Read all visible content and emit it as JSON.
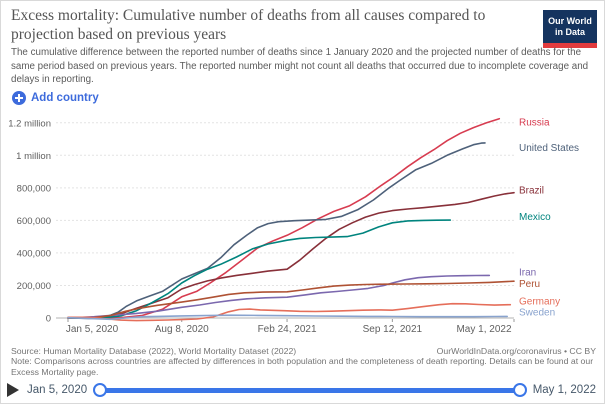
{
  "header": {
    "title": "Excess mortality: Cumulative number of deaths from all causes compared to projection based on previous years",
    "subtitle": "The cumulative difference between the reported number of deaths since 1 January 2020 and the projected number of deaths for the same period based on previous years. The reported number might not count all deaths that occurred due to incomplete coverage and delays in reporting.",
    "logo": {
      "line1": "Our World",
      "line2": "in Data"
    }
  },
  "controls": {
    "add_country_label": "Add country"
  },
  "chart_data": {
    "type": "line",
    "title": "Excess mortality: Cumulative number of deaths from all causes compared to projection based on previous years",
    "value_unit": "thousands of deaths",
    "grid": true,
    "legend_position": "right-edge-labels",
    "x_axis": {
      "total_days": 847,
      "ticks": [
        {
          "day": 0,
          "label": "Jan 5, 2020"
        },
        {
          "day": 216,
          "label": "Aug 8, 2020"
        },
        {
          "day": 416,
          "label": "Feb 24, 2021"
        },
        {
          "day": 616,
          "label": "Sep 12, 2021"
        },
        {
          "day": 847,
          "label": "May 1, 2022"
        }
      ]
    },
    "y_axis": {
      "ylim_thousands": [
        0,
        1200
      ],
      "ticks": [
        {
          "value": 0,
          "label": "0"
        },
        {
          "value": 200,
          "label": "200,000"
        },
        {
          "value": 400,
          "label": "400,000"
        },
        {
          "value": 600,
          "label": "600,000"
        },
        {
          "value": 800,
          "label": "800,000"
        },
        {
          "value": 1000,
          "label": "1 million"
        },
        {
          "value": 1200,
          "label": "1.2 million"
        }
      ]
    },
    "series": [
      {
        "name": "Russia",
        "color": "#D73C50",
        "points_thousands": [
          [
            0,
            0
          ],
          [
            60,
            -2
          ],
          [
            100,
            2
          ],
          [
            140,
            15
          ],
          [
            180,
            55
          ],
          [
            216,
            130
          ],
          [
            245,
            165
          ],
          [
            270,
            215
          ],
          [
            300,
            280
          ],
          [
            330,
            355
          ],
          [
            360,
            430
          ],
          [
            390,
            475
          ],
          [
            416,
            508
          ],
          [
            445,
            555
          ],
          [
            475,
            610
          ],
          [
            505,
            655
          ],
          [
            535,
            690
          ],
          [
            565,
            745
          ],
          [
            595,
            815
          ],
          [
            620,
            870
          ],
          [
            645,
            930
          ],
          [
            670,
            985
          ],
          [
            695,
            1035
          ],
          [
            720,
            1090
          ],
          [
            745,
            1135
          ],
          [
            770,
            1170
          ],
          [
            795,
            1200
          ],
          [
            819,
            1225
          ]
        ]
      },
      {
        "name": "United States",
        "color": "#4E617A",
        "points_thousands": [
          [
            0,
            0
          ],
          [
            40,
            -3
          ],
          [
            70,
            3
          ],
          [
            95,
            35
          ],
          [
            110,
            70
          ],
          [
            130,
            105
          ],
          [
            155,
            135
          ],
          [
            180,
            165
          ],
          [
            216,
            240
          ],
          [
            240,
            272
          ],
          [
            265,
            305
          ],
          [
            290,
            370
          ],
          [
            315,
            450
          ],
          [
            340,
            510
          ],
          [
            360,
            555
          ],
          [
            380,
            580
          ],
          [
            400,
            592
          ],
          [
            430,
            598
          ],
          [
            460,
            602
          ],
          [
            490,
            606
          ],
          [
            520,
            625
          ],
          [
            550,
            665
          ],
          [
            580,
            725
          ],
          [
            610,
            800
          ],
          [
            630,
            845
          ],
          [
            660,
            910
          ],
          [
            690,
            950
          ],
          [
            720,
            1000
          ],
          [
            750,
            1040
          ],
          [
            770,
            1065
          ],
          [
            785,
            1075
          ],
          [
            792,
            1076
          ]
        ]
      },
      {
        "name": "Brazil",
        "color": "#883039",
        "points_thousands": [
          [
            0,
            0
          ],
          [
            70,
            5
          ],
          [
            100,
            25
          ],
          [
            130,
            60
          ],
          [
            160,
            92
          ],
          [
            190,
            125
          ],
          [
            216,
            178
          ],
          [
            240,
            205
          ],
          [
            265,
            228
          ],
          [
            290,
            245
          ],
          [
            320,
            262
          ],
          [
            350,
            275
          ],
          [
            380,
            288
          ],
          [
            416,
            300
          ],
          [
            440,
            355
          ],
          [
            465,
            425
          ],
          [
            490,
            490
          ],
          [
            515,
            545
          ],
          [
            540,
            585
          ],
          [
            565,
            620
          ],
          [
            590,
            645
          ],
          [
            616,
            660
          ],
          [
            645,
            670
          ],
          [
            675,
            678
          ],
          [
            705,
            688
          ],
          [
            735,
            698
          ],
          [
            760,
            710
          ],
          [
            785,
            730
          ],
          [
            810,
            750
          ],
          [
            830,
            763
          ],
          [
            847,
            770
          ]
        ]
      },
      {
        "name": "Mexico",
        "color": "#00847E",
        "points_thousands": [
          [
            0,
            0
          ],
          [
            70,
            2
          ],
          [
            100,
            12
          ],
          [
            130,
            45
          ],
          [
            160,
            95
          ],
          [
            190,
            150
          ],
          [
            216,
            215
          ],
          [
            240,
            260
          ],
          [
            265,
            300
          ],
          [
            290,
            330
          ],
          [
            320,
            375
          ],
          [
            350,
            425
          ],
          [
            380,
            455
          ],
          [
            416,
            478
          ],
          [
            440,
            489
          ],
          [
            470,
            495
          ],
          [
            500,
            497
          ],
          [
            530,
            500
          ],
          [
            560,
            522
          ],
          [
            590,
            560
          ],
          [
            616,
            585
          ],
          [
            645,
            597
          ],
          [
            675,
            600
          ],
          [
            700,
            601
          ],
          [
            726,
            602
          ]
        ]
      },
      {
        "name": "Iran",
        "color": "#7B68AE",
        "points_thousands": [
          [
            0,
            0
          ],
          [
            50,
            8
          ],
          [
            90,
            18
          ],
          [
            130,
            28
          ],
          [
            170,
            42
          ],
          [
            216,
            66
          ],
          [
            250,
            80
          ],
          [
            280,
            95
          ],
          [
            310,
            108
          ],
          [
            340,
            118
          ],
          [
            375,
            124
          ],
          [
            416,
            128
          ],
          [
            450,
            142
          ],
          [
            480,
            155
          ],
          [
            510,
            163
          ],
          [
            540,
            172
          ],
          [
            570,
            182
          ],
          [
            600,
            200
          ],
          [
            616,
            215
          ],
          [
            640,
            235
          ],
          [
            665,
            248
          ],
          [
            690,
            254
          ],
          [
            720,
            258
          ],
          [
            750,
            260
          ],
          [
            775,
            261
          ],
          [
            800,
            262
          ]
        ]
      },
      {
        "name": "Peru",
        "color": "#AF5234",
        "points_thousands": [
          [
            0,
            0
          ],
          [
            50,
            3
          ],
          [
            80,
            15
          ],
          [
            110,
            42
          ],
          [
            140,
            62
          ],
          [
            170,
            78
          ],
          [
            216,
            98
          ],
          [
            245,
            112
          ],
          [
            275,
            128
          ],
          [
            305,
            145
          ],
          [
            335,
            155
          ],
          [
            370,
            159
          ],
          [
            416,
            161
          ],
          [
            445,
            172
          ],
          [
            475,
            185
          ],
          [
            505,
            196
          ],
          [
            535,
            202
          ],
          [
            565,
            206
          ],
          [
            600,
            208
          ],
          [
            640,
            209
          ],
          [
            680,
            210
          ],
          [
            720,
            212
          ],
          [
            760,
            215
          ],
          [
            800,
            219
          ],
          [
            847,
            226
          ]
        ]
      },
      {
        "name": "Germany",
        "color": "#E56E5A",
        "points_thousands": [
          [
            0,
            4
          ],
          [
            40,
            4
          ],
          [
            70,
            -4
          ],
          [
            100,
            -13
          ],
          [
            130,
            -16
          ],
          [
            160,
            -14
          ],
          [
            190,
            -12
          ],
          [
            216,
            -10
          ],
          [
            245,
            -6
          ],
          [
            275,
            6
          ],
          [
            305,
            38
          ],
          [
            325,
            52
          ],
          [
            345,
            55
          ],
          [
            365,
            50
          ],
          [
            410,
            45
          ],
          [
            440,
            41
          ],
          [
            470,
            40
          ],
          [
            500,
            42
          ],
          [
            530,
            45
          ],
          [
            560,
            48
          ],
          [
            590,
            50
          ],
          [
            616,
            48
          ],
          [
            645,
            58
          ],
          [
            675,
            70
          ],
          [
            705,
            82
          ],
          [
            730,
            88
          ],
          [
            755,
            87
          ],
          [
            780,
            83
          ],
          [
            810,
            79
          ],
          [
            840,
            82
          ]
        ]
      },
      {
        "name": "Sweden",
        "color": "#89A3CE",
        "points_thousands": [
          [
            0,
            2
          ],
          [
            50,
            -4
          ],
          [
            80,
            -8
          ],
          [
            110,
            0
          ],
          [
            140,
            8
          ],
          [
            170,
            10
          ],
          [
            216,
            13
          ],
          [
            260,
            15
          ],
          [
            310,
            17
          ],
          [
            360,
            16
          ],
          [
            416,
            14
          ],
          [
            470,
            12
          ],
          [
            520,
            11
          ],
          [
            570,
            10
          ],
          [
            616,
            9
          ],
          [
            670,
            8
          ],
          [
            720,
            8
          ],
          [
            770,
            8
          ],
          [
            810,
            9
          ],
          [
            834,
            10
          ]
        ]
      }
    ]
  },
  "footer": {
    "source": "Source: Human Mortality Database (2022), World Mortality Dataset (2022)",
    "license": "OurWorldInData.org/coronavirus • CC BY",
    "note": "Note: Comparisons across countries are affected by differences in both population and the completeness of death reporting. Details can be found at our Excess Mortality page."
  },
  "timeline": {
    "start_date": "Jan 5, 2020",
    "end_date": "May 1, 2022"
  },
  "colors": {
    "accent_blue": "#3A76E8",
    "logo_bg": "#15345F",
    "logo_stripe": "#E23B3E"
  }
}
